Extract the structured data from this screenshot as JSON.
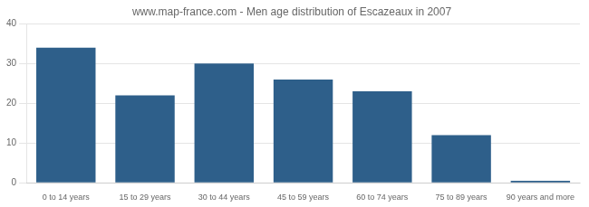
{
  "chart_data": {
    "type": "bar",
    "title": "www.map-france.com - Men age distribution of Escazeaux in 2007",
    "categories": [
      "0 to 14 years",
      "15 to 29 years",
      "30 to 44 years",
      "45 to 59 years",
      "60 to 74 years",
      "75 to 89 years",
      "90 years and more"
    ],
    "values": [
      34,
      22,
      30,
      26,
      23,
      12,
      0.5
    ],
    "color": "#2e5f8a",
    "ylim": [
      0,
      40
    ],
    "yticks": [
      0,
      10,
      20,
      30,
      40
    ],
    "grid": true
  }
}
